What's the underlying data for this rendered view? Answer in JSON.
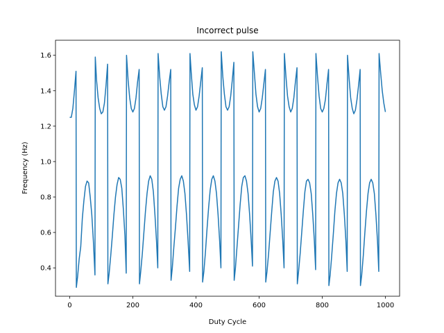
{
  "chart_data": {
    "type": "line",
    "title": "Incorrect pulse",
    "xlabel": "Duty Cycle",
    "ylabel": "Frequency (Hz)",
    "xlim": [
      -45,
      1045
    ],
    "ylim": [
      0.24,
      1.685
    ],
    "xticks": [
      0,
      200,
      400,
      600,
      800,
      1000
    ],
    "yticks": [
      0.4,
      0.6,
      0.8,
      1.0,
      1.2,
      1.4,
      1.6
    ],
    "grid": false,
    "legend": "none",
    "series": [
      {
        "color": "#1f77b4",
        "segments": [
          {
            "high": [
              [
                0,
                1.25
              ],
              [
                5,
                1.25
              ],
              [
                10,
                1.3
              ],
              [
                15,
                1.4
              ],
              [
                20,
                1.51
              ]
            ],
            "low": [
              [
                21,
                0.29
              ],
              [
                25,
                0.35
              ],
              [
                30,
                0.45
              ],
              [
                35,
                0.52
              ],
              [
                40,
                0.68
              ],
              [
                45,
                0.78
              ],
              [
                50,
                0.86
              ],
              [
                55,
                0.89
              ],
              [
                60,
                0.88
              ],
              [
                65,
                0.8
              ],
              [
                70,
                0.7
              ],
              [
                75,
                0.55
              ],
              [
                80,
                0.36
              ]
            ]
          },
          {
            "high": [
              [
                81,
                1.59
              ],
              [
                85,
                1.46
              ],
              [
                90,
                1.36
              ],
              [
                95,
                1.3
              ],
              [
                100,
                1.27
              ],
              [
                105,
                1.28
              ],
              [
                110,
                1.33
              ],
              [
                115,
                1.43
              ],
              [
                120,
                1.55
              ]
            ],
            "low": [
              [
                121,
                0.31
              ],
              [
                125,
                0.37
              ],
              [
                130,
                0.47
              ],
              [
                135,
                0.58
              ],
              [
                140,
                0.7
              ],
              [
                145,
                0.8
              ],
              [
                150,
                0.87
              ],
              [
                155,
                0.91
              ],
              [
                160,
                0.9
              ],
              [
                165,
                0.85
              ],
              [
                170,
                0.73
              ],
              [
                175,
                0.58
              ],
              [
                179,
                0.37
              ]
            ]
          },
          {
            "high": [
              [
                180,
                1.6
              ],
              [
                185,
                1.46
              ],
              [
                190,
                1.36
              ],
              [
                195,
                1.3
              ],
              [
                200,
                1.28
              ],
              [
                205,
                1.3
              ],
              [
                210,
                1.36
              ],
              [
                215,
                1.45
              ],
              [
                220,
                1.52
              ]
            ],
            "low": [
              [
                221,
                0.31
              ],
              [
                225,
                0.38
              ],
              [
                230,
                0.48
              ],
              [
                235,
                0.6
              ],
              [
                240,
                0.72
              ],
              [
                245,
                0.82
              ],
              [
                250,
                0.89
              ],
              [
                255,
                0.92
              ],
              [
                260,
                0.9
              ],
              [
                265,
                0.83
              ],
              [
                270,
                0.7
              ],
              [
                275,
                0.55
              ],
              [
                279,
                0.4
              ]
            ]
          },
          {
            "high": [
              [
                280,
                1.61
              ],
              [
                285,
                1.48
              ],
              [
                290,
                1.38
              ],
              [
                295,
                1.31
              ],
              [
                300,
                1.29
              ],
              [
                305,
                1.31
              ],
              [
                310,
                1.37
              ],
              [
                315,
                1.45
              ],
              [
                320,
                1.52
              ]
            ],
            "low": [
              [
                321,
                0.33
              ],
              [
                325,
                0.4
              ],
              [
                330,
                0.52
              ],
              [
                335,
                0.63
              ],
              [
                340,
                0.75
              ],
              [
                345,
                0.85
              ],
              [
                350,
                0.9
              ],
              [
                355,
                0.92
              ],
              [
                360,
                0.89
              ],
              [
                365,
                0.82
              ],
              [
                370,
                0.7
              ],
              [
                375,
                0.55
              ],
              [
                380,
                0.38
              ]
            ]
          },
          {
            "high": [
              [
                381,
                1.61
              ],
              [
                385,
                1.5
              ],
              [
                390,
                1.38
              ],
              [
                395,
                1.32
              ],
              [
                400,
                1.29
              ],
              [
                405,
                1.31
              ],
              [
                410,
                1.37
              ],
              [
                415,
                1.45
              ],
              [
                420,
                1.53
              ]
            ],
            "low": [
              [
                421,
                0.32
              ],
              [
                425,
                0.38
              ],
              [
                430,
                0.49
              ],
              [
                435,
                0.62
              ],
              [
                440,
                0.74
              ],
              [
                445,
                0.84
              ],
              [
                450,
                0.9
              ],
              [
                455,
                0.92
              ],
              [
                460,
                0.89
              ],
              [
                465,
                0.82
              ],
              [
                470,
                0.7
              ],
              [
                475,
                0.55
              ],
              [
                479,
                0.4
              ]
            ]
          },
          {
            "high": [
              [
                480,
                1.62
              ],
              [
                485,
                1.48
              ],
              [
                490,
                1.38
              ],
              [
                495,
                1.31
              ],
              [
                500,
                1.29
              ],
              [
                505,
                1.31
              ],
              [
                510,
                1.37
              ],
              [
                515,
                1.46
              ],
              [
                520,
                1.56
              ]
            ],
            "low": [
              [
                521,
                0.33
              ],
              [
                525,
                0.4
              ],
              [
                530,
                0.52
              ],
              [
                535,
                0.64
              ],
              [
                540,
                0.76
              ],
              [
                545,
                0.86
              ],
              [
                550,
                0.91
              ],
              [
                555,
                0.92
              ],
              [
                560,
                0.89
              ],
              [
                565,
                0.82
              ],
              [
                570,
                0.7
              ],
              [
                575,
                0.55
              ],
              [
                579,
                0.41
              ]
            ]
          },
          {
            "high": [
              [
                580,
                1.62
              ],
              [
                585,
                1.5
              ],
              [
                590,
                1.38
              ],
              [
                595,
                1.31
              ],
              [
                600,
                1.28
              ],
              [
                605,
                1.3
              ],
              [
                610,
                1.36
              ],
              [
                615,
                1.44
              ],
              [
                620,
                1.52
              ]
            ],
            "low": [
              [
                621,
                0.32
              ],
              [
                625,
                0.38
              ],
              [
                630,
                0.48
              ],
              [
                635,
                0.6
              ],
              [
                640,
                0.72
              ],
              [
                645,
                0.83
              ],
              [
                650,
                0.89
              ],
              [
                655,
                0.91
              ],
              [
                660,
                0.89
              ],
              [
                665,
                0.82
              ],
              [
                670,
                0.7
              ],
              [
                675,
                0.55
              ],
              [
                679,
                0.4
              ]
            ]
          },
          {
            "high": [
              [
                680,
                1.61
              ],
              [
                685,
                1.48
              ],
              [
                690,
                1.37
              ],
              [
                695,
                1.31
              ],
              [
                700,
                1.28
              ],
              [
                705,
                1.3
              ],
              [
                710,
                1.36
              ],
              [
                715,
                1.45
              ],
              [
                720,
                1.53
              ]
            ],
            "low": [
              [
                721,
                0.31
              ],
              [
                725,
                0.38
              ],
              [
                730,
                0.48
              ],
              [
                735,
                0.6
              ],
              [
                740,
                0.72
              ],
              [
                745,
                0.83
              ],
              [
                750,
                0.89
              ],
              [
                755,
                0.9
              ],
              [
                760,
                0.88
              ],
              [
                765,
                0.82
              ],
              [
                770,
                0.7
              ],
              [
                775,
                0.55
              ],
              [
                779,
                0.39
              ]
            ]
          },
          {
            "high": [
              [
                780,
                1.61
              ],
              [
                785,
                1.48
              ],
              [
                790,
                1.37
              ],
              [
                795,
                1.3
              ],
              [
                800,
                1.28
              ],
              [
                805,
                1.3
              ],
              [
                810,
                1.35
              ],
              [
                815,
                1.44
              ],
              [
                820,
                1.52
              ]
            ],
            "low": [
              [
                821,
                0.3
              ],
              [
                825,
                0.36
              ],
              [
                830,
                0.47
              ],
              [
                835,
                0.59
              ],
              [
                840,
                0.72
              ],
              [
                845,
                0.82
              ],
              [
                850,
                0.88
              ],
              [
                855,
                0.9
              ],
              [
                860,
                0.88
              ],
              [
                865,
                0.82
              ],
              [
                870,
                0.7
              ],
              [
                875,
                0.55
              ],
              [
                879,
                0.38
              ]
            ]
          },
          {
            "high": [
              [
                880,
                1.6
              ],
              [
                885,
                1.47
              ],
              [
                890,
                1.36
              ],
              [
                895,
                1.3
              ],
              [
                900,
                1.27
              ],
              [
                905,
                1.29
              ],
              [
                910,
                1.35
              ],
              [
                915,
                1.43
              ],
              [
                920,
                1.52
              ]
            ],
            "low": [
              [
                921,
                0.3
              ],
              [
                925,
                0.36
              ],
              [
                930,
                0.47
              ],
              [
                935,
                0.6
              ],
              [
                940,
                0.72
              ],
              [
                945,
                0.82
              ],
              [
                950,
                0.88
              ],
              [
                955,
                0.9
              ],
              [
                960,
                0.88
              ],
              [
                965,
                0.82
              ],
              [
                970,
                0.7
              ],
              [
                975,
                0.55
              ],
              [
                979,
                0.38
              ]
            ]
          },
          {
            "high": [
              [
                980,
                1.61
              ],
              [
                985,
                1.5
              ],
              [
                990,
                1.4
              ],
              [
                995,
                1.33
              ],
              [
                1000,
                1.28
              ]
            ],
            "low": []
          }
        ]
      }
    ]
  }
}
